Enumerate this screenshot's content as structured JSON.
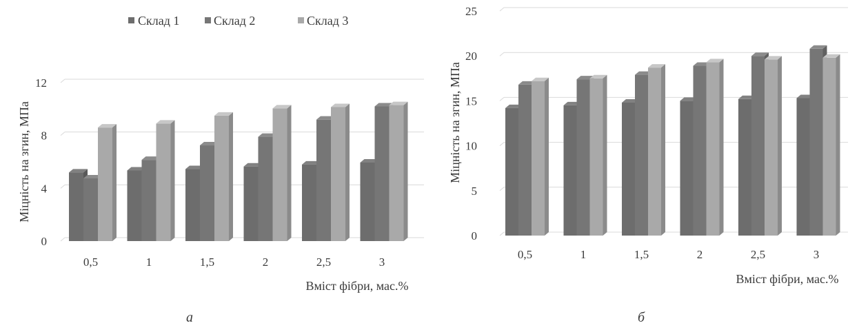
{
  "chart_data": [
    {
      "panel_label": "а",
      "type": "bar",
      "style": "3d-clustered-column",
      "categories": [
        "0,5",
        "1",
        "1,5",
        "2",
        "2,5",
        "3"
      ],
      "series": [
        {
          "name": "Склад 1",
          "values": [
            5.2,
            5.35,
            5.45,
            5.65,
            5.8,
            5.95
          ],
          "color": "#6d6d6d"
        },
        {
          "name": "Склад 2",
          "values": [
            4.75,
            6.15,
            7.25,
            7.9,
            9.2,
            10.2
          ],
          "color": "#767676"
        },
        {
          "name": "Склад 3",
          "values": [
            8.6,
            8.9,
            9.5,
            10.05,
            10.15,
            10.3
          ],
          "color": "#a9a9a9"
        }
      ],
      "xlabel": "Вміст фібри, мас.%",
      "ylabel": "Міцність на згин, МПа",
      "yticks": [
        "0",
        "4",
        "8",
        "12"
      ],
      "ylim": [
        0,
        12
      ],
      "grid": true,
      "legend": "top"
    },
    {
      "panel_label": "б",
      "type": "bar",
      "style": "3d-clustered-column",
      "categories": [
        "0,5",
        "1",
        "1,5",
        "2",
        "2,5",
        "3"
      ],
      "series": [
        {
          "name": "Склад 1",
          "values": [
            14.2,
            14.5,
            14.8,
            15.0,
            15.2,
            15.3
          ],
          "color": "#6d6d6d"
        },
        {
          "name": "Склад 2",
          "values": [
            16.8,
            17.4,
            17.9,
            18.9,
            20.0,
            20.8
          ],
          "color": "#767676"
        },
        {
          "name": "Склад 3",
          "values": [
            17.2,
            17.5,
            18.7,
            19.3,
            19.6,
            19.8
          ],
          "color": "#a9a9a9"
        }
      ],
      "xlabel": "Вміст фібри, мас.%",
      "ylabel": "Міцність на згин, МПа",
      "yticks": [
        "0",
        "5",
        "10",
        "15",
        "20",
        "25"
      ],
      "ylim": [
        0,
        25
      ],
      "grid": true,
      "legend": "none"
    }
  ]
}
